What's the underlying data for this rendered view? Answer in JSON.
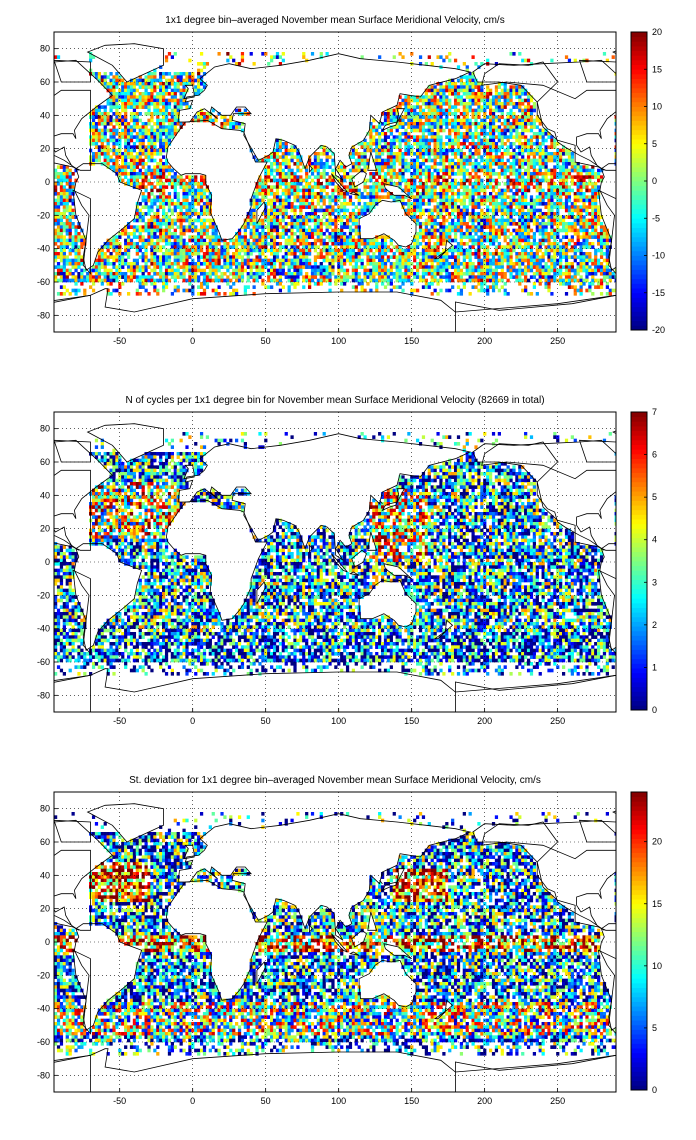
{
  "chart_data": [
    {
      "type": "heatmap",
      "title": "1x1 degree bin–averaged November mean Surface Meridional Velocity, cm/s",
      "xlim": [
        -95,
        290
      ],
      "ylim": [
        -90,
        90
      ],
      "x_ticks": [
        "-50",
        "0",
        "50",
        "100",
        "150",
        "200",
        "250"
      ],
      "y_ticks": [
        "80",
        "60",
        "40",
        "20",
        "0",
        "-20",
        "-40",
        "-60",
        "-80"
      ],
      "colorbar": {
        "min": -20,
        "max": 20,
        "ticks": [
          "20",
          "15",
          "10",
          "5",
          "0",
          "-5",
          "-10",
          "-15",
          "-20"
        ]
      },
      "colormap": "jet",
      "grid": true
    },
    {
      "type": "heatmap",
      "title": "N of cycles per 1x1 degree bin for November mean Surface Meridional Velocity (82669 in total)",
      "xlim": [
        -95,
        290
      ],
      "ylim": [
        -90,
        90
      ],
      "x_ticks": [
        "-50",
        "0",
        "50",
        "100",
        "150",
        "200",
        "250"
      ],
      "y_ticks": [
        "80",
        "60",
        "40",
        "20",
        "0",
        "-20",
        "-40",
        "-60",
        "-80"
      ],
      "colorbar": {
        "min": 0,
        "max": 7,
        "ticks": [
          "7",
          "6",
          "5",
          "4",
          "3",
          "2",
          "1",
          "0"
        ]
      },
      "colormap": "jet",
      "grid": true
    },
    {
      "type": "heatmap",
      "title": "St. deviation for 1x1 degree bin–averaged November mean Surface Meridional Velocity, cm/s",
      "xlim": [
        -95,
        290
      ],
      "ylim": [
        -90,
        90
      ],
      "x_ticks": [
        "-50",
        "0",
        "50",
        "100",
        "150",
        "200",
        "250"
      ],
      "y_ticks": [
        "80",
        "60",
        "40",
        "20",
        "0",
        "-20",
        "-40",
        "-60",
        "-80"
      ],
      "colorbar": {
        "min": 0,
        "max": 24,
        "ticks": [
          "20",
          "15",
          "10",
          "5",
          "0"
        ]
      },
      "colormap": "jet",
      "grid": true
    }
  ]
}
